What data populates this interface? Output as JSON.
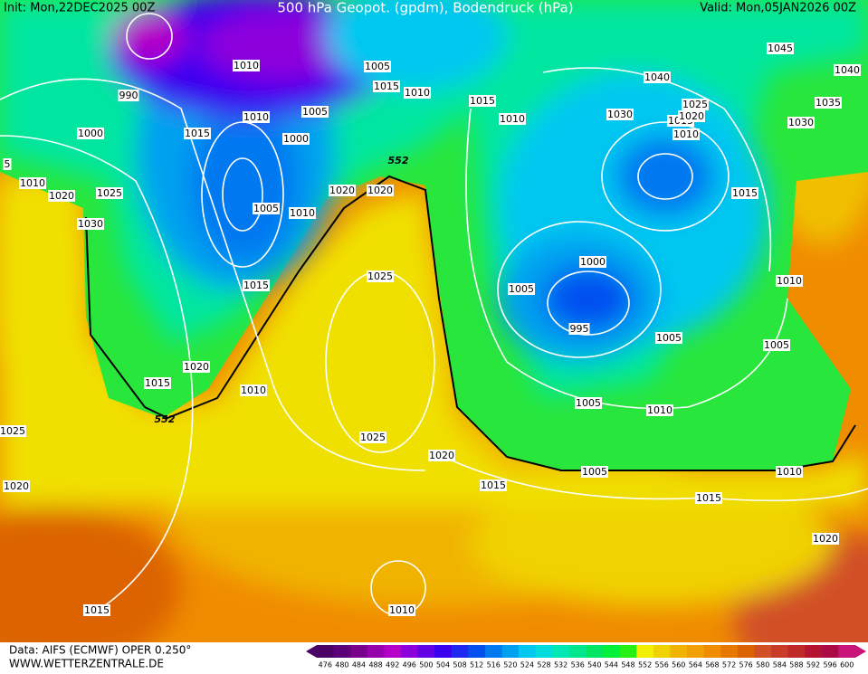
{
  "header": {
    "init": "Init: Mon,22DEC2025 00Z",
    "title": "500 hPa Geopot. (gpdm), Bodendruck (hPa)",
    "valid": "Valid: Mon,05JAN2026 00Z"
  },
  "footer": {
    "source": "Data: AIFS (ECMWF) OPER 0.250°",
    "site": "WWW.WETTERZENTRALE.DE"
  },
  "contour_labels": [
    "552",
    "552"
  ],
  "isobar_labels": [
    "990",
    "1000",
    "1015",
    "1010",
    "1010",
    "1005",
    "1000",
    "1005",
    "1010",
    "1020",
    "1020",
    "1005",
    "1015",
    "1010",
    "1010",
    "1020",
    "1025",
    "1030",
    "1015",
    "1025",
    "1020",
    "1015",
    "1010",
    "1025",
    "1020",
    "1015",
    "1025",
    "1020",
    "1015",
    "1010",
    "1015",
    "1010",
    "1030",
    "1040",
    "1015",
    "1010",
    "1025",
    "1020",
    "1045",
    "1040",
    "1035",
    "1030",
    "1015",
    "1000",
    "1005",
    "995",
    "1005",
    "1005",
    "1010",
    "1005",
    "1010",
    "1005",
    "1010",
    "1015",
    "1020",
    "5"
  ],
  "colorbar": {
    "values": [
      476,
      480,
      484,
      488,
      492,
      496,
      500,
      504,
      508,
      512,
      516,
      520,
      524,
      528,
      532,
      536,
      540,
      544,
      548,
      552,
      556,
      560,
      564,
      568,
      572,
      576,
      580,
      584,
      588,
      592,
      596,
      600
    ],
    "colors": [
      "#4b0064",
      "#5a0078",
      "#78008c",
      "#9600aa",
      "#b400c8",
      "#8c00dc",
      "#6400e6",
      "#3c00f0",
      "#1e28f0",
      "#0050f0",
      "#0078f0",
      "#00a0f0",
      "#00c8f0",
      "#00dcdc",
      "#00e6b4",
      "#00e68c",
      "#00e664",
      "#00f03c",
      "#28f014",
      "#f0f000",
      "#f0d200",
      "#f0b400",
      "#f0a000",
      "#f08c00",
      "#e67800",
      "#dc6400",
      "#d25028",
      "#c83c28",
      "#be2828",
      "#b41432",
      "#aa0a46",
      "#c81478"
    ]
  }
}
